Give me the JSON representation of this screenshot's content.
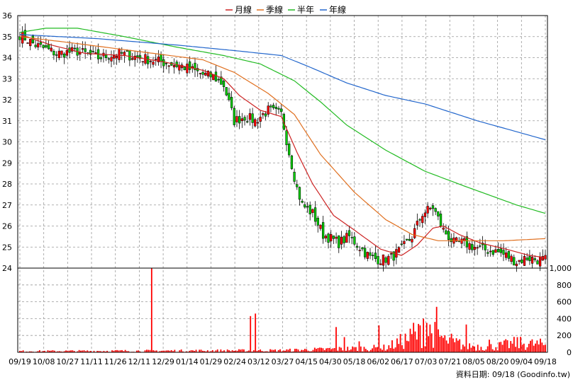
{
  "chart_data": {
    "type": "candlestick",
    "legend": {
      "placement": "top-center",
      "items": [
        {
          "label": "月線",
          "color": "#cc2222"
        },
        {
          "label": "季線",
          "color": "#e07020"
        },
        {
          "label": "半年",
          "color": "#22bb22"
        },
        {
          "label": "年線",
          "color": "#2266cc"
        }
      ]
    },
    "price_axis": {
      "min": 24,
      "max": 36,
      "ticks": [
        "24",
        "25",
        "26",
        "27",
        "28",
        "29",
        "30",
        "31",
        "32",
        "33",
        "34",
        "35",
        "36"
      ]
    },
    "volume_axis": {
      "min": 0,
      "max": 1000,
      "ticks": [
        "0",
        "200",
        "400",
        "600",
        "800",
        "1,000"
      ]
    },
    "x_ticks": [
      "09/19",
      "10/08",
      "10/27",
      "11/11",
      "11/26",
      "12/11",
      "12/29",
      "01/14",
      "01/29",
      "02/24",
      "03/12",
      "03/27",
      "04/15",
      "04/30",
      "05/18",
      "06/02",
      "06/17",
      "07/03",
      "07/21",
      "08/05",
      "08/20",
      "09/04",
      "09/18"
    ],
    "grid": true,
    "colors": {
      "up": "#ff0000",
      "down": "#00cc00",
      "volume": "#ff0000",
      "wick": "#000000"
    },
    "price_anchors": [
      [
        0,
        35.1
      ],
      [
        6,
        34.6
      ],
      [
        14,
        34.2
      ],
      [
        22,
        34.3
      ],
      [
        30,
        34.0
      ],
      [
        38,
        34.2
      ],
      [
        46,
        34.0
      ],
      [
        54,
        33.8
      ],
      [
        62,
        33.6
      ],
      [
        70,
        33.2
      ],
      [
        74,
        33.1
      ],
      [
        78,
        32.7
      ],
      [
        82,
        31.0
      ],
      [
        86,
        31.2
      ],
      [
        90,
        31.0
      ],
      [
        95,
        31.5
      ],
      [
        100,
        31.3
      ],
      [
        103,
        29.5
      ],
      [
        106,
        27.8
      ],
      [
        108,
        27.0
      ],
      [
        112,
        26.6
      ],
      [
        116,
        25.6
      ],
      [
        122,
        25.2
      ],
      [
        126,
        25.5
      ],
      [
        130,
        25.0
      ],
      [
        134,
        24.5
      ],
      [
        138,
        24.4
      ],
      [
        142,
        24.5
      ],
      [
        146,
        24.9
      ],
      [
        150,
        25.5
      ],
      [
        154,
        26.6
      ],
      [
        158,
        26.9
      ],
      [
        162,
        25.8
      ],
      [
        166,
        25.2
      ],
      [
        170,
        25.2
      ],
      [
        176,
        24.9
      ],
      [
        182,
        24.8
      ],
      [
        186,
        24.6
      ],
      [
        190,
        24.3
      ],
      [
        194,
        24.5
      ],
      [
        198,
        24.4
      ],
      [
        201,
        24.4
      ]
    ],
    "volume_anchors": [
      [
        0,
        15
      ],
      [
        100,
        25
      ],
      [
        140,
        60
      ],
      [
        150,
        200
      ],
      [
        156,
        280
      ],
      [
        162,
        180
      ],
      [
        170,
        90
      ],
      [
        180,
        70
      ],
      [
        190,
        120
      ],
      [
        201,
        100
      ]
    ],
    "volume_spikes": [
      [
        80,
        1000
      ],
      [
        140,
        430
      ],
      [
        143,
        460
      ],
      [
        192,
        300
      ],
      [
        197,
        180
      ],
      [
        206,
        130
      ],
      [
        218,
        320
      ],
      [
        239,
        350
      ],
      [
        243,
        320
      ],
      [
        245,
        400
      ],
      [
        247,
        350
      ],
      [
        249,
        330
      ],
      [
        253,
        540
      ],
      [
        259,
        140
      ],
      [
        264,
        120
      ],
      [
        271,
        330
      ],
      [
        285,
        150
      ],
      [
        291,
        120
      ],
      [
        294,
        140
      ],
      [
        302,
        180
      ]
    ],
    "ma_anchors": {
      "月線": [
        [
          0,
          35.1
        ],
        [
          12,
          34.6
        ],
        [
          25,
          34.2
        ],
        [
          40,
          34.1
        ],
        [
          55,
          33.8
        ],
        [
          70,
          33.4
        ],
        [
          78,
          33.0
        ],
        [
          84,
          32.2
        ],
        [
          92,
          31.5
        ],
        [
          100,
          31.2
        ],
        [
          106,
          29.5
        ],
        [
          112,
          28.0
        ],
        [
          120,
          26.5
        ],
        [
          128,
          25.8
        ],
        [
          138,
          24.9
        ],
        [
          146,
          24.6
        ],
        [
          152,
          25.1
        ],
        [
          158,
          25.9
        ],
        [
          162,
          26.0
        ],
        [
          168,
          25.6
        ],
        [
          176,
          25.2
        ],
        [
          186,
          24.9
        ],
        [
          195,
          24.6
        ],
        [
          201,
          24.5
        ]
      ],
      "季線": [
        [
          0,
          35.0
        ],
        [
          20,
          34.7
        ],
        [
          45,
          34.3
        ],
        [
          70,
          33.9
        ],
        [
          82,
          33.3
        ],
        [
          95,
          32.3
        ],
        [
          105,
          31.3
        ],
        [
          115,
          29.4
        ],
        [
          128,
          27.6
        ],
        [
          140,
          26.3
        ],
        [
          150,
          25.6
        ],
        [
          160,
          25.3
        ],
        [
          172,
          25.3
        ],
        [
          185,
          25.3
        ],
        [
          201,
          25.4
        ]
      ],
      "半年": [
        [
          0,
          35.2
        ],
        [
          10,
          35.4
        ],
        [
          22,
          35.4
        ],
        [
          40,
          35.0
        ],
        [
          60,
          34.5
        ],
        [
          78,
          34.1
        ],
        [
          92,
          33.7
        ],
        [
          105,
          32.9
        ],
        [
          115,
          31.9
        ],
        [
          125,
          30.8
        ],
        [
          140,
          29.6
        ],
        [
          155,
          28.6
        ],
        [
          170,
          27.9
        ],
        [
          190,
          27.0
        ],
        [
          201,
          26.6
        ]
      ],
      "年線": [
        [
          0,
          35.1
        ],
        [
          30,
          34.9
        ],
        [
          60,
          34.6
        ],
        [
          85,
          34.3
        ],
        [
          100,
          34.1
        ],
        [
          110,
          33.6
        ],
        [
          125,
          32.8
        ],
        [
          140,
          32.2
        ],
        [
          155,
          31.8
        ],
        [
          175,
          31.0
        ],
        [
          201,
          30.1
        ]
      ]
    }
  },
  "footer": {
    "text": "資料日期: 09/18  (Goodinfo.tw)"
  }
}
